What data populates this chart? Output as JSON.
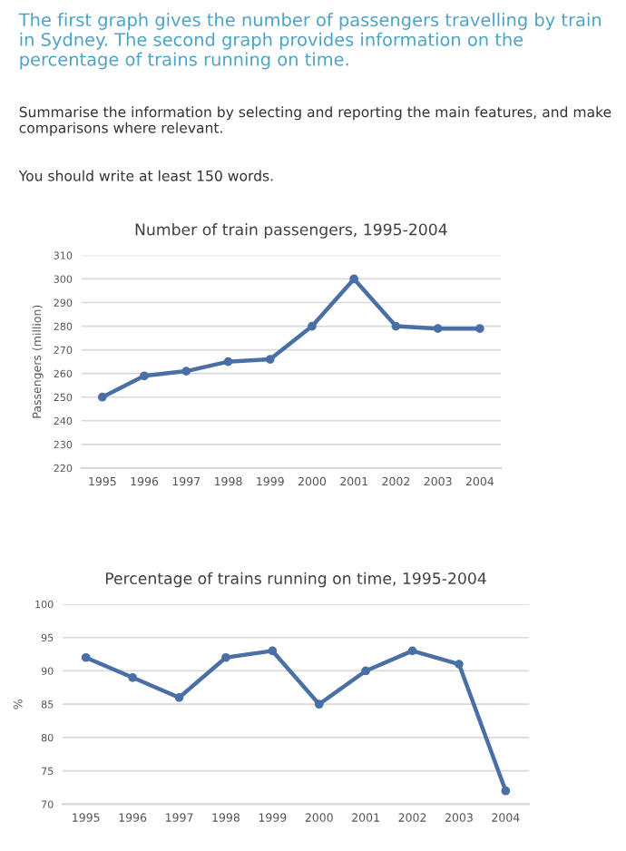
{
  "chart_data": [
    {
      "type": "line",
      "title": "Number of train passengers, 1995-2004",
      "ylabel": "Passengers (million)",
      "annotations": [
        "The first graph gives the number of passengers travelling by train in Sydney. The second graph provides information on the percentage of trains running on time.",
        "Summarise the information by selecting and reporting the main features, and make comparisons where relevant.",
        "You should write at least 150 words."
      ],
      "categories": [
        "1995",
        "1996",
        "1997",
        "1998",
        "1999",
        "2000",
        "2001",
        "2002",
        "2003",
        "2004"
      ],
      "series": [
        {
          "color": "#4a6fa5",
          "values": [
            250,
            259,
            261,
            265,
            266,
            280,
            300,
            280,
            279,
            279
          ]
        }
      ],
      "ylim": [
        220,
        310
      ],
      "yticks": [
        220,
        230,
        240,
        250,
        260,
        270,
        280,
        290,
        300,
        310
      ],
      "grid": "y",
      "marker": "circle",
      "line_style": "solid"
    },
    {
      "type": "line",
      "title": "Percentage of trains running on time, 1995-2004",
      "ylabel": "%",
      "categories": [
        "1995",
        "1996",
        "1997",
        "1998",
        "1999",
        "2000",
        "2001",
        "2002",
        "2003",
        "2004"
      ],
      "series": [
        {
          "color": "#4a6fa5",
          "values": [
            92,
            89,
            86,
            92,
            93,
            85,
            90,
            93,
            91,
            72
          ]
        }
      ],
      "ylim": [
        70,
        100
      ],
      "yticks": [
        70,
        75,
        80,
        85,
        90,
        95,
        100
      ],
      "grid": "y",
      "marker": "circle",
      "line_style": "solid"
    }
  ]
}
